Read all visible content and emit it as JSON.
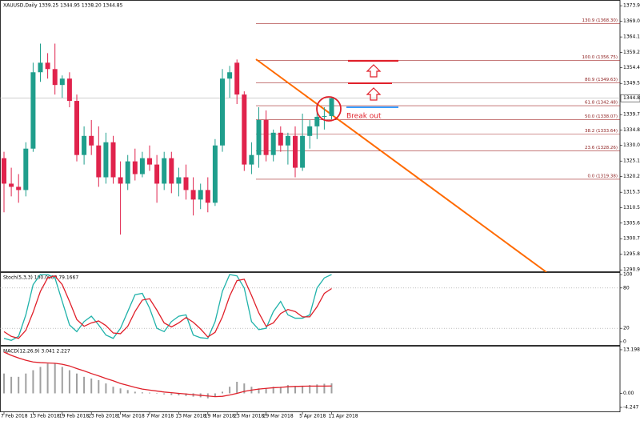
{
  "chart_data": [
    {
      "type": "candlestick",
      "title": "XAUUSD,Daily  1339.25 1344.95 1338.20 1344.85",
      "categories": [
        "7 Feb 2018",
        null,
        null,
        null,
        "13 Feb 2018",
        null,
        null,
        null,
        "19 Feb 2018",
        null,
        null,
        null,
        "23 Feb 2018",
        null,
        null,
        null,
        "1 Mar 2018",
        null,
        null,
        null,
        "7 Mar 2018",
        null,
        null,
        null,
        "13 Mar 2018",
        null,
        null,
        null,
        "19 Mar 2018",
        null,
        null,
        null,
        "23 Mar 2018",
        null,
        null,
        null,
        "29 Mar 2018",
        null,
        null,
        null,
        null,
        "5 Apr 2018",
        null,
        null,
        null,
        "11 Apr 2018"
      ],
      "open": [
        1326,
        1318,
        1317,
        1316,
        1329,
        1353,
        1356,
        1354,
        1349,
        1351,
        1344,
        1327,
        1333,
        1330,
        1320,
        1331,
        1320,
        1318,
        1325,
        1321,
        1326,
        1324,
        1318,
        1326,
        1318,
        1320,
        1316,
        1313,
        1316,
        1312,
        1330,
        1351,
        1356,
        1346,
        1324,
        1327,
        1338,
        1327,
        1334,
        1330,
        1333,
        1323,
        1333,
        1336,
        1339,
        1339.25
      ],
      "high": [
        1328,
        1323,
        1321,
        1331,
        1356,
        1362,
        1359,
        1362,
        1352,
        1353,
        1346,
        1336,
        1338,
        1336,
        1334,
        1333,
        1325,
        1327,
        1329,
        1328,
        1330,
        1327,
        1328,
        1328,
        1323,
        1324,
        1320,
        1318,
        1320,
        1332,
        1354,
        1355,
        1357,
        1347,
        1331,
        1342,
        1341,
        1335,
        1336,
        1334,
        1336,
        1340,
        1338,
        1343,
        1342,
        1344.95
      ],
      "low": [
        1309,
        1314,
        1312,
        1314,
        1328,
        1350,
        1351,
        1346,
        1345,
        1342,
        1325,
        1324,
        1327,
        1317,
        1318,
        1318,
        1302,
        1316,
        1319,
        1320,
        1322,
        1312,
        1316,
        1315,
        1314,
        1313,
        1308,
        1310,
        1309,
        1311,
        1328,
        1345,
        1343,
        1322,
        1321,
        1323,
        1325,
        1325,
        1328,
        1324,
        1320,
        1322,
        1329,
        1332,
        1335,
        1338.2
      ],
      "close": [
        1318,
        1317,
        1316,
        1329,
        1353,
        1356,
        1354,
        1349,
        1351,
        1344,
        1327,
        1333,
        1330,
        1320,
        1331,
        1320,
        1318,
        1325,
        1321,
        1326,
        1324,
        1318,
        1326,
        1318,
        1320,
        1316,
        1313,
        1316,
        1312,
        1330,
        1351,
        1353,
        1346,
        1324,
        1327,
        1338,
        1327,
        1334,
        1330,
        1333,
        1323,
        1333,
        1336,
        1339,
        1339.25,
        1344.85
      ],
      "up_color": "#1f9e8c",
      "down_color": "#e0234c",
      "ylim": [
        1290.2,
        1375.7
      ],
      "yticks": [
        {
          "value": 1373.9,
          "label": "1373.90"
        },
        {
          "value": 1369,
          "label": "1369.00"
        },
        {
          "value": 1364.1,
          "label": "1364.10"
        },
        {
          "value": 1359.2,
          "label": "1359.20"
        },
        {
          "value": 1354.4,
          "label": "1354.40"
        },
        {
          "value": 1349.5,
          "label": "1349.50"
        },
        {
          "value": 1339.7,
          "label": "1339.70"
        },
        {
          "value": 1334.8,
          "label": "1334.80"
        },
        {
          "value": 1330,
          "label": "1330.00"
        },
        {
          "value": 1325.1,
          "label": "1325.10"
        },
        {
          "value": 1320.2,
          "label": "1320.20"
        },
        {
          "value": 1315.3,
          "label": "1315.30"
        },
        {
          "value": 1310.5,
          "label": "1310.50"
        },
        {
          "value": 1305.6,
          "label": "1305.60"
        },
        {
          "value": 1300.7,
          "label": "1300.70"
        },
        {
          "value": 1295.8,
          "label": "1295.80"
        },
        {
          "value": 1290.9,
          "label": "1290.90"
        }
      ],
      "current_price": 1344.85,
      "fib_levels": [
        {
          "value": 1368.3,
          "label": "130.9 (1368.30)"
        },
        {
          "value": 1356.75,
          "label": "100.0 (1356.75)"
        },
        {
          "value": 1349.63,
          "label": "80.9 (1349.63)"
        },
        {
          "value": 1342.48,
          "label": "61.8 (1342.48)"
        },
        {
          "value": 1338.07,
          "label": "50.0 (1338.07)"
        },
        {
          "value": 1333.64,
          "label": "38.2 (1333.64)"
        },
        {
          "value": 1328.26,
          "label": "23.6 (1328.26)"
        },
        {
          "value": 1319.38,
          "label": "0.0 (1319.38)"
        }
      ],
      "annotation": "Break out"
    },
    {
      "type": "line",
      "title": "Stoch(5,3,3) 100.0000 79.1667",
      "ylim": [
        -6,
        103.6
      ],
      "yticks": [
        100,
        80,
        20,
        0
      ],
      "levels": [
        80,
        20
      ],
      "series": [
        {
          "color": "#20b2aa",
          "values": [
            5,
            2,
            8,
            40,
            85,
            100,
            100,
            95,
            60,
            25,
            15,
            30,
            38,
            25,
            10,
            5,
            20,
            45,
            70,
            72,
            50,
            20,
            15,
            30,
            38,
            40,
            10,
            6,
            5,
            30,
            75,
            100,
            98,
            80,
            30,
            18,
            20,
            45,
            60,
            40,
            35,
            35,
            40,
            80,
            95,
            100
          ]
        },
        {
          "color": "#e0202a",
          "values": [
            15,
            8,
            5,
            17,
            44,
            75,
            95,
            98,
            85,
            60,
            33,
            23,
            28,
            31,
            24,
            13,
            12,
            23,
            45,
            62,
            64,
            47,
            28,
            22,
            28,
            36,
            29,
            19,
            7,
            14,
            37,
            68,
            91,
            93,
            69,
            43,
            23,
            28,
            42,
            48,
            45,
            37,
            37,
            52,
            72,
            79.1667
          ]
        }
      ]
    },
    {
      "type": "macd",
      "title": "MACD(12,26,9) 3.041 2.227",
      "ylim": [
        -5.7,
        14.4
      ],
      "yticks": [
        13.198,
        {
          "value": 0,
          "label": "0.00"
        },
        -4.247
      ],
      "color": "#a0a0a0",
      "values": [
        6,
        5,
        5,
        6,
        7,
        8,
        9,
        9,
        8,
        7,
        6,
        5,
        4.5,
        4,
        3,
        2,
        1.5,
        1,
        0.5,
        0.3,
        0.2,
        0.1,
        -0.3,
        -0.5,
        -0.6,
        -0.8,
        -1,
        -1.2,
        -1.5,
        -1,
        0.5,
        2,
        3.5,
        3,
        2,
        1.5,
        1.5,
        2,
        2,
        2.5,
        2.2,
        2.3,
        2.5,
        2.7,
        2.9,
        3.041
      ],
      "series": [
        {
          "color": "#e0202a",
          "values": [
            12.5,
            11.5,
            10.7,
            10,
            9.5,
            9.3,
            9.2,
            9.1,
            8.8,
            8.3,
            7.5,
            6.8,
            6,
            5.3,
            4.5,
            3.8,
            3,
            2.4,
            1.8,
            1.3,
            1,
            0.7,
            0.4,
            0.2,
            0,
            -0.2,
            -0.4,
            -0.6,
            -0.8,
            -1,
            -0.9,
            -0.5,
            0,
            0.6,
            1,
            1.3,
            1.5,
            1.7,
            1.8,
            2,
            2.1,
            2.15,
            2.2,
            2.2,
            2.2,
            2.227
          ]
        }
      ]
    }
  ]
}
